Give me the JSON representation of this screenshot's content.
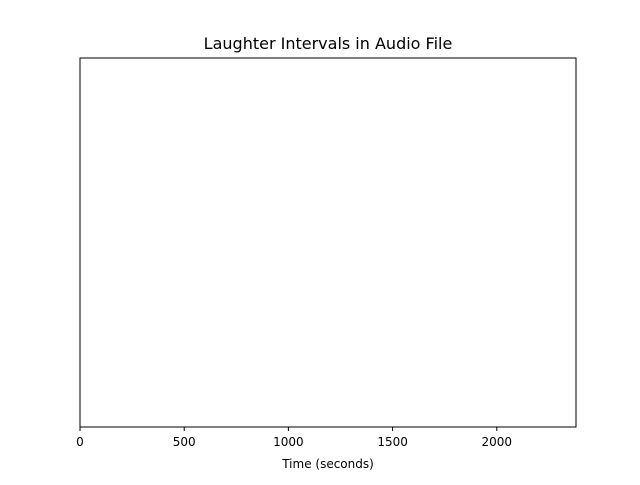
{
  "chart_data": {
    "type": "bar",
    "title": "Laughter Intervals in Audio File",
    "xlabel": "Time (seconds)",
    "ylabel": "",
    "xlim": [
      0,
      2380
    ],
    "xticks": [
      0,
      500,
      1000,
      1500,
      2000
    ],
    "xtick_labels": [
      "0",
      "500",
      "1000",
      "1500",
      "2000"
    ],
    "y_axis_visible": false,
    "grid": false,
    "legend": "none",
    "intervals": []
  }
}
